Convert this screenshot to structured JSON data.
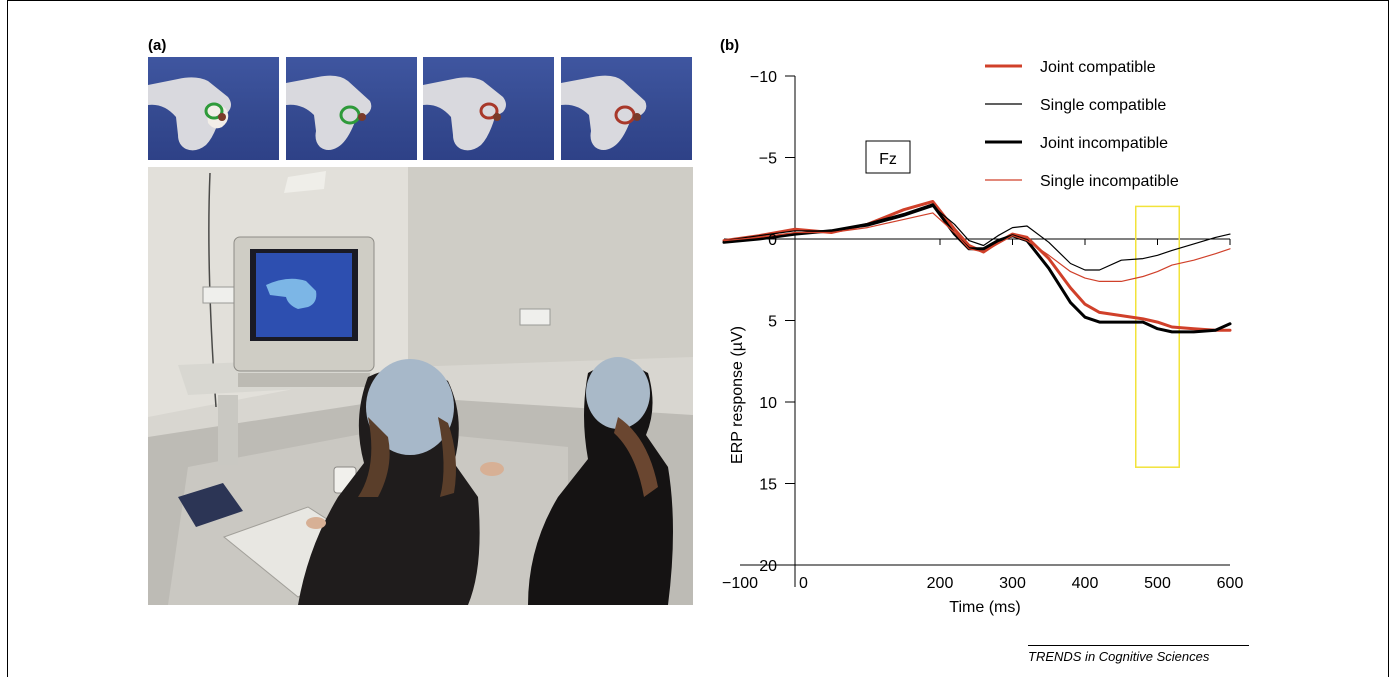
{
  "panel_a": {
    "label": "(a)"
  },
  "panel_b": {
    "label": "(b)",
    "electrode": "Fz"
  },
  "footer": "TRENDS in Cognitive Sciences",
  "chart_data": {
    "type": "line",
    "xlabel": "Time (ms)",
    "ylabel": "ERP response (µV)",
    "xlim": [
      -100,
      600
    ],
    "ylim": [
      -10,
      20
    ],
    "y_inverted": true,
    "x_ticks": [
      -100,
      0,
      200,
      300,
      400,
      500,
      600
    ],
    "y_ticks": [
      -10,
      -5,
      0,
      5,
      10,
      15,
      20
    ],
    "legend_position": "top-right",
    "grid": false,
    "x": [
      -100,
      -50,
      0,
      50,
      100,
      150,
      190,
      220,
      240,
      260,
      280,
      300,
      320,
      350,
      380,
      400,
      420,
      450,
      480,
      500,
      520,
      550,
      580,
      600
    ],
    "series": [
      {
        "name": "Joint compatible",
        "color": "#d0402a",
        "width": "thick",
        "values": [
          0.1,
          -0.2,
          -0.6,
          -0.4,
          -0.9,
          -1.8,
          -2.3,
          -0.6,
          0.4,
          0.8,
          0.2,
          -0.3,
          -0.1,
          1.2,
          3.0,
          4.0,
          4.5,
          4.7,
          4.9,
          5.1,
          5.4,
          5.5,
          5.6,
          5.6
        ]
      },
      {
        "name": "Single compatible",
        "color": "#000000",
        "width": "thin",
        "values": [
          0.1,
          -0.2,
          -0.5,
          -0.5,
          -0.8,
          -1.4,
          -2.0,
          -0.9,
          0.1,
          0.4,
          -0.2,
          -0.7,
          -0.8,
          0.2,
          1.5,
          1.9,
          1.9,
          1.3,
          1.2,
          1.0,
          0.7,
          0.3,
          -0.1,
          -0.3
        ]
      },
      {
        "name": "Joint incompatible",
        "color": "#000000",
        "width": "thick",
        "values": [
          0.2,
          0.0,
          -0.3,
          -0.5,
          -0.9,
          -1.5,
          -2.1,
          -0.3,
          0.6,
          0.6,
          0.1,
          -0.2,
          0.1,
          1.8,
          3.9,
          4.8,
          5.1,
          5.1,
          5.1,
          5.5,
          5.7,
          5.7,
          5.6,
          5.2
        ]
      },
      {
        "name": "Single incompatible",
        "color": "#d0402a",
        "width": "thin",
        "values": [
          0.1,
          -0.1,
          -0.4,
          -0.4,
          -0.7,
          -1.2,
          -1.6,
          -0.4,
          0.6,
          0.8,
          0.3,
          -0.2,
          0.1,
          1.0,
          2.0,
          2.4,
          2.6,
          2.6,
          2.3,
          2.0,
          1.6,
          1.3,
          0.9,
          0.6
        ]
      }
    ],
    "highlight_window": {
      "x": [
        470,
        530
      ],
      "y": [
        -2,
        14
      ],
      "color": "#f2e33a"
    }
  }
}
